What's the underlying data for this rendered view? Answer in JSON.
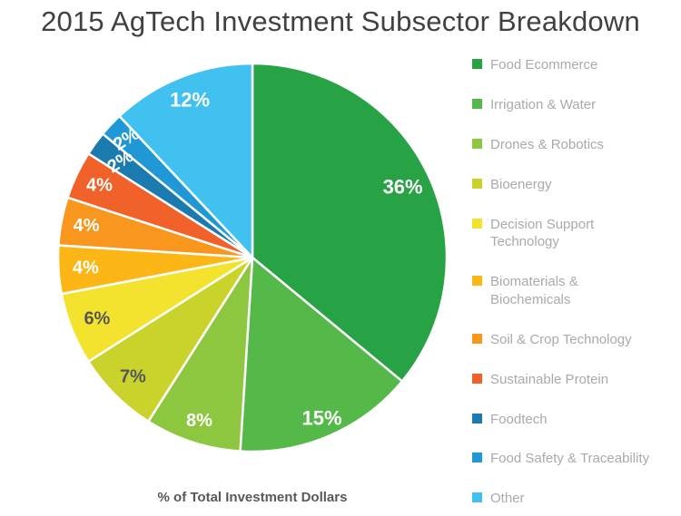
{
  "title": "2015 AgTech Investment Subsector Breakdown",
  "footer_label": "% of Total Investment Dollars",
  "colors": {
    "title_text": "#414042",
    "legend_text": "#A8AAAD",
    "footer_text": "#58595B",
    "slice_divider": "#FFFFFF",
    "dark_label": "#55565A"
  },
  "chart_data": {
    "type": "pie",
    "title": "2015 AgTech Investment Subsector Breakdown",
    "unit_label": "% of Total Investment Dollars",
    "start_angle_deg": 0,
    "direction": "clockwise",
    "legend_position": "right",
    "slices": [
      {
        "label": "Food Ecommerce",
        "value": 36,
        "display": "36%",
        "color": "#27A245",
        "label_color": "#FFFFFF"
      },
      {
        "label": "Irrigation & Water",
        "value": 15,
        "display": "15%",
        "color": "#54B948",
        "label_color": "#FFFFFF"
      },
      {
        "label": "Drones & Robotics",
        "value": 8,
        "display": "8%",
        "color": "#8DC63F",
        "label_color": "#FFFFFF"
      },
      {
        "label": "Bioenergy",
        "value": 7,
        "display": "7%",
        "color": "#C9D32C",
        "label_color": "#55565A"
      },
      {
        "label": "Decision Support Technology",
        "value": 6,
        "display": "6%",
        "color": "#F3E32E",
        "label_color": "#55565A"
      },
      {
        "label": "Biomaterials & Biochemicals",
        "value": 4,
        "display": "4%",
        "color": "#FCB615",
        "label_color": "#FFFFFF"
      },
      {
        "label": "Soil & Crop Technology",
        "value": 4,
        "display": "4%",
        "color": "#F8961D",
        "label_color": "#FFFFFF"
      },
      {
        "label": "Sustainable Protein",
        "value": 4,
        "display": "4%",
        "color": "#F1612A",
        "label_color": "#FFFFFF"
      },
      {
        "label": "Foodtech",
        "value": 2,
        "display": "2%",
        "color": "#1C7BAE",
        "label_color": "#FFFFFF"
      },
      {
        "label": "Food Safety & Traceability",
        "value": 2,
        "display": "2%",
        "color": "#2098D5",
        "label_color": "#FFFFFF"
      },
      {
        "label": "Other",
        "value": 12,
        "display": "12%",
        "color": "#41C1F0",
        "label_color": "#FFFFFF"
      }
    ]
  }
}
